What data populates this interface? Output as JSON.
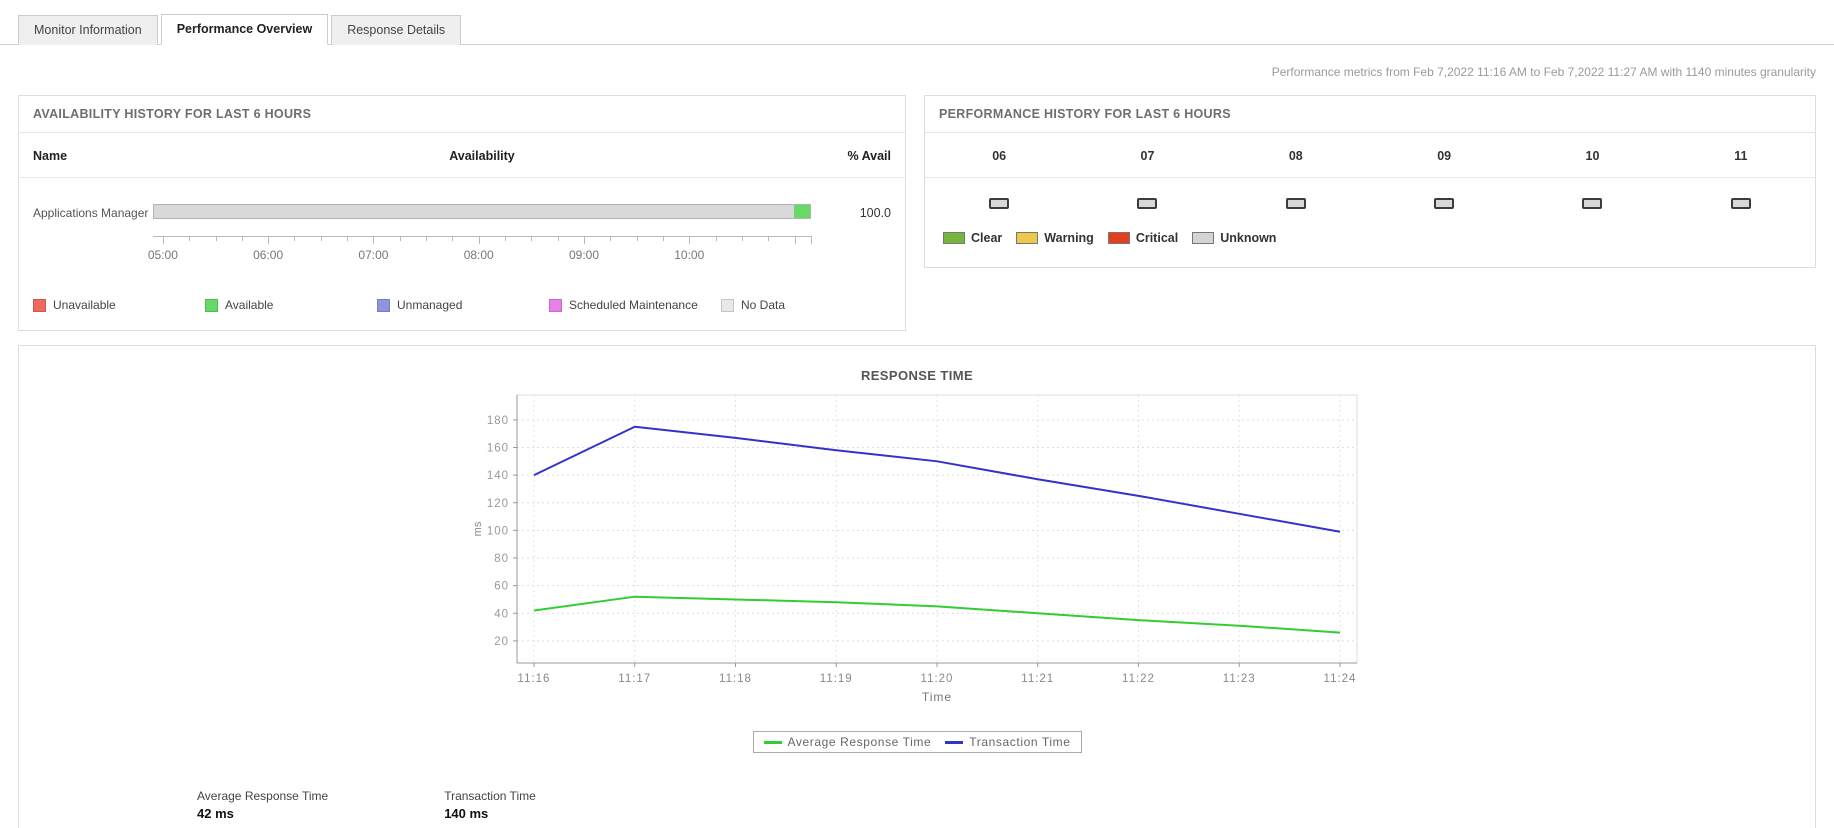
{
  "tabs": [
    {
      "label": "Monitor Information",
      "active": false
    },
    {
      "label": "Performance Overview",
      "active": true
    },
    {
      "label": "Response Details",
      "active": false
    }
  ],
  "meta_text": "Performance metrics from Feb 7,2022 11:16 AM to Feb 7,2022 11:27 AM with 1140 minutes granularity",
  "availability": {
    "title": "AVAILABILITY HISTORY FOR LAST 6 HOURS",
    "columns": {
      "name": "Name",
      "availability": "Availability",
      "percent": "% Avail"
    },
    "row": {
      "name": "Applications Manager",
      "percent": "100.0",
      "segments": [
        {
          "state": "no-data",
          "color": "#d9d9d9",
          "width_pct": 97.6
        },
        {
          "state": "available",
          "color": "#66d966",
          "width_pct": 2.4
        }
      ]
    },
    "axis_labels": [
      "05:00",
      "06:00",
      "07:00",
      "08:00",
      "09:00",
      "10:00"
    ],
    "legend": [
      {
        "label": "Unavailable",
        "color": "#ed6a5f"
      },
      {
        "label": "Available",
        "color": "#66d966"
      },
      {
        "label": "Unmanaged",
        "color": "#9193dd"
      },
      {
        "label": "Scheduled Maintenance",
        "color": "#e97fe9"
      },
      {
        "label": "No Data",
        "color": "#e8e8e8"
      }
    ]
  },
  "performance": {
    "title": "PERFORMANCE HISTORY FOR LAST 6 HOURS",
    "hours": [
      {
        "label": "06",
        "status": "unknown"
      },
      {
        "label": "07",
        "status": "unknown"
      },
      {
        "label": "08",
        "status": "unknown"
      },
      {
        "label": "09",
        "status": "unknown"
      },
      {
        "label": "10",
        "status": "unknown"
      },
      {
        "label": "11",
        "status": "unknown"
      }
    ],
    "status_colors": {
      "unknown": "#d8d8d8"
    },
    "legend": [
      {
        "label": "Clear",
        "color": "#77b53e"
      },
      {
        "label": "Warning",
        "color": "#ecc84c"
      },
      {
        "label": "Critical",
        "color": "#e2401f"
      },
      {
        "label": "Unknown",
        "color": "#d4d4d4"
      }
    ]
  },
  "chart_data": {
    "type": "line",
    "title": "RESPONSE TIME",
    "xlabel": "Time",
    "ylabel": "ms",
    "x": [
      "11:16",
      "11:17",
      "11:18",
      "11:19",
      "11:20",
      "11:21",
      "11:22",
      "11:23",
      "11:24"
    ],
    "series": [
      {
        "name": "Average Response Time",
        "color": "#33cc33",
        "values": [
          42,
          52,
          50,
          48,
          45,
          40,
          35,
          31,
          26
        ]
      },
      {
        "name": "Transaction Time",
        "color": "#3333cc",
        "values": [
          140,
          175,
          167,
          158,
          150,
          137,
          125,
          112,
          99
        ]
      }
    ],
    "ylim": [
      4,
      198
    ],
    "yticks": [
      20,
      40,
      60,
      80,
      100,
      120,
      140,
      160,
      180
    ],
    "grid": true,
    "legend_position": "bottom"
  },
  "stats": [
    {
      "label": "Average Response Time",
      "value": "42 ms"
    },
    {
      "label": "Transaction Time",
      "value": "140 ms"
    }
  ]
}
